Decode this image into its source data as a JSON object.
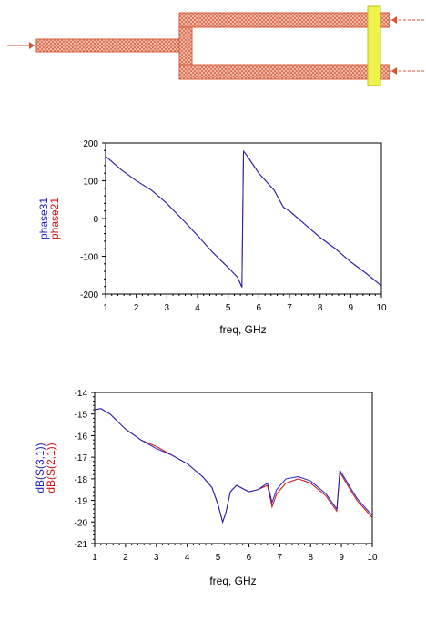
{
  "layout_diagram": {
    "description_hidden": ""
  },
  "chart_data": [
    {
      "type": "line",
      "xlabel": "freq, GHz",
      "ylabel_series": [
        "phase31",
        "phase21"
      ],
      "xlim": [
        1,
        10
      ],
      "ylim": [
        -200,
        200
      ],
      "x_ticks": [
        1,
        2,
        3,
        4,
        5,
        6,
        7,
        8,
        9,
        10
      ],
      "y_ticks": [
        200,
        100,
        0,
        -100,
        -200
      ],
      "series": [
        {
          "name": "phase31",
          "color": "#1f1fbf",
          "x": [
            1.0,
            1.5,
            2.0,
            2.5,
            3.0,
            3.3,
            3.6,
            4.0,
            4.5,
            5.0,
            5.3,
            5.45,
            5.5,
            5.6,
            6.0,
            6.5,
            6.8,
            7.0,
            7.5,
            8.0,
            8.5,
            9.0,
            9.5,
            10.0
          ],
          "y": [
            165,
            130,
            100,
            75,
            40,
            15,
            -10,
            -45,
            -90,
            -130,
            -155,
            -182,
            178,
            168,
            120,
            75,
            30,
            20,
            -15,
            -50,
            -80,
            -115,
            -145,
            -178
          ]
        },
        {
          "name": "phase21",
          "color": "#d01010",
          "x": [
            1.0,
            1.5,
            2.0,
            2.5,
            3.0,
            3.3,
            3.6,
            4.0,
            4.5,
            5.0,
            5.3,
            5.45,
            5.5,
            5.6,
            6.0,
            6.5,
            6.8,
            7.0,
            7.5,
            8.0,
            8.5,
            9.0,
            9.5,
            10.0
          ],
          "y": [
            165,
            130,
            100,
            75,
            40,
            15,
            -10,
            -45,
            -90,
            -130,
            -155,
            -182,
            178,
            168,
            120,
            75,
            30,
            20,
            -15,
            -50,
            -80,
            -115,
            -145,
            -178
          ]
        }
      ]
    },
    {
      "type": "line",
      "xlabel": "freq, GHz",
      "ylabel_series": [
        "dB(S(3,1))",
        "dB(S(2,1))"
      ],
      "xlim": [
        1,
        10
      ],
      "ylim": [
        -21,
        -14
      ],
      "x_ticks": [
        1,
        2,
        3,
        4,
        5,
        6,
        7,
        8,
        9,
        10
      ],
      "y_ticks": [
        -14,
        -15,
        -16,
        -17,
        -18,
        -19,
        -20,
        -21
      ],
      "series": [
        {
          "name": "dB(S(3,1))",
          "color": "#1f1fbf",
          "x": [
            1.0,
            1.2,
            1.5,
            2.0,
            2.5,
            3.0,
            3.5,
            4.0,
            4.5,
            4.8,
            5.0,
            5.15,
            5.25,
            5.4,
            5.6,
            6.0,
            6.3,
            6.6,
            6.75,
            6.9,
            7.2,
            7.6,
            8.0,
            8.5,
            8.85,
            8.95,
            9.2,
            9.5,
            10.0
          ],
          "y": [
            -14.8,
            -14.75,
            -15.0,
            -15.7,
            -16.2,
            -16.6,
            -16.9,
            -17.3,
            -17.9,
            -18.4,
            -19.2,
            -20.0,
            -19.6,
            -18.6,
            -18.3,
            -18.6,
            -18.5,
            -18.2,
            -19.1,
            -18.5,
            -18.0,
            -17.9,
            -18.1,
            -18.7,
            -19.4,
            -17.6,
            -18.2,
            -18.9,
            -19.7
          ]
        },
        {
          "name": "dB(S(2,1))",
          "color": "#d01010",
          "x": [
            1.0,
            1.2,
            1.5,
            2.0,
            2.5,
            3.0,
            3.5,
            4.0,
            4.5,
            4.8,
            5.0,
            5.15,
            5.25,
            5.4,
            5.6,
            6.0,
            6.3,
            6.6,
            6.75,
            6.9,
            7.2,
            7.6,
            8.0,
            8.5,
            8.85,
            8.95,
            9.2,
            9.5,
            10.0
          ],
          "y": [
            -14.8,
            -14.75,
            -15.0,
            -15.7,
            -16.2,
            -16.5,
            -16.9,
            -17.3,
            -17.9,
            -18.4,
            -19.2,
            -20.0,
            -19.6,
            -18.6,
            -18.3,
            -18.6,
            -18.5,
            -18.3,
            -19.3,
            -18.7,
            -18.2,
            -18.0,
            -18.2,
            -18.8,
            -19.5,
            -17.7,
            -18.3,
            -19.0,
            -19.8
          ]
        }
      ]
    }
  ]
}
